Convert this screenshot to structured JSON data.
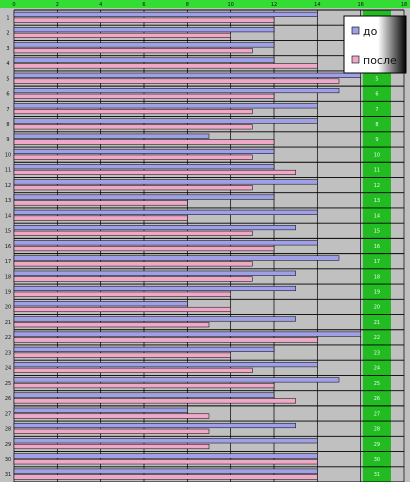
{
  "chart_data": {
    "type": "bar",
    "orientation": "horizontal",
    "xlim": [
      0,
      18
    ],
    "x_ticks": [
      "0",
      "2",
      "4",
      "6",
      "8",
      "10",
      "12",
      "14",
      "16",
      "18"
    ],
    "categories": [
      "1",
      "2",
      "3",
      "4",
      "5",
      "6",
      "7",
      "8",
      "9",
      "10",
      "11",
      "12",
      "13",
      "14",
      "15",
      "16",
      "17",
      "18",
      "19",
      "20",
      "21",
      "22",
      "23",
      "24",
      "25",
      "26",
      "27",
      "28",
      "29",
      "30",
      "31"
    ],
    "series": [
      {
        "name": "до",
        "color": "#a0a0e8",
        "values": [
          14,
          12,
          12,
          12,
          16,
          15,
          14,
          14,
          9,
          12,
          12,
          14,
          12,
          14,
          13,
          14,
          15,
          13,
          13,
          8,
          13,
          16,
          12,
          14,
          15,
          12,
          8,
          13,
          14,
          14,
          14
        ]
      },
      {
        "name": "после",
        "color": "#f0a8c8",
        "values": [
          12,
          10,
          11,
          14,
          15,
          12,
          11,
          11,
          12,
          11,
          13,
          11,
          8,
          8,
          11,
          12,
          11,
          11,
          10,
          10,
          9,
          14,
          10,
          11,
          12,
          13,
          9,
          9,
          9,
          14,
          14
        ]
      }
    ],
    "legend": {
      "position": "top-right",
      "entries": [
        "до",
        "после"
      ]
    },
    "grid": true,
    "colors": {
      "plot_area": "#c0c0c0",
      "highlight_band": "#22bb22",
      "top_bar": "#33dd33",
      "gridline": "#000000",
      "row_separator": "#000000"
    }
  }
}
